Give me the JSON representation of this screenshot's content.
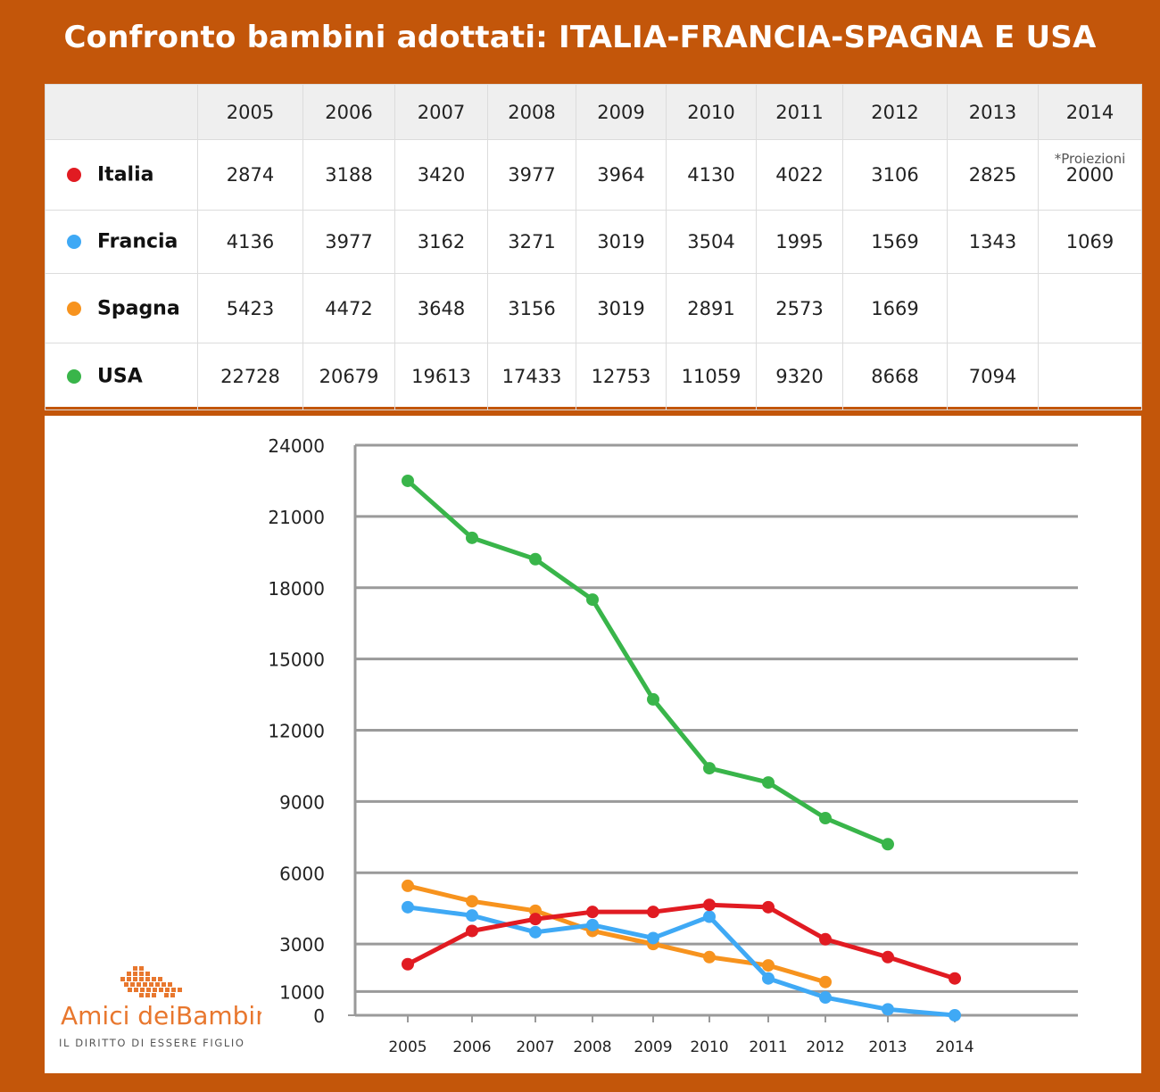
{
  "title": "Confronto bambini adottati: ITALIA-FRANCIA-SPAGNA E USA",
  "table": {
    "years": [
      "2005",
      "2006",
      "2007",
      "2008",
      "2009",
      "2010",
      "2011",
      "2012",
      "2013",
      "2014"
    ],
    "note": "*Proiezioni",
    "rows": [
      {
        "name": "Italia",
        "color": "#e11b22",
        "values": [
          "2874",
          "3188",
          "3420",
          "3977",
          "3964",
          "4130",
          "4022",
          "3106",
          "2825",
          "2000"
        ]
      },
      {
        "name": "Francia",
        "color": "#3fa9f5",
        "values": [
          "4136",
          "3977",
          "3162",
          "3271",
          "3019",
          "3504",
          "1995",
          "1569",
          "1343",
          "1069"
        ]
      },
      {
        "name": "Spagna",
        "color": "#f7931e",
        "values": [
          "5423",
          "4472",
          "3648",
          "3156",
          "3019",
          "2891",
          "2573",
          "1669",
          "",
          ""
        ]
      },
      {
        "name": "USA",
        "color": "#39b54a",
        "values": [
          "22728",
          "20679",
          "19613",
          "17433",
          "12753",
          "11059",
          "9320",
          "8668",
          "7094",
          ""
        ]
      }
    ]
  },
  "chart_data": {
    "type": "line",
    "categories": [
      "2005",
      "2006",
      "2007",
      "2008",
      "2009",
      "2010",
      "2011",
      "2012",
      "2013",
      "2014"
    ],
    "ylim": [
      0,
      24000
    ],
    "yticks": [
      "0",
      "1000",
      "3000",
      "6000",
      "9000",
      "12000",
      "15000",
      "18000",
      "21000",
      "24000"
    ],
    "grid": true,
    "series": [
      {
        "name": "USA",
        "color": "#39b54a",
        "values": [
          22500,
          20100,
          19200,
          17500,
          13300,
          10400,
          9800,
          8300,
          7200,
          null
        ]
      },
      {
        "name": "Spagna",
        "color": "#f7931e",
        "values": [
          5450,
          4800,
          4400,
          3550,
          3000,
          2450,
          2100,
          1400,
          null,
          null
        ]
      },
      {
        "name": "Francia",
        "color": "#3fa9f5",
        "values": [
          4550,
          4200,
          3500,
          3800,
          3250,
          4150,
          1550,
          750,
          250,
          0
        ]
      },
      {
        "name": "Italia",
        "color": "#e11b22",
        "values": [
          2150,
          3550,
          4050,
          4350,
          4350,
          4650,
          4550,
          3200,
          2450,
          1550
        ]
      }
    ]
  },
  "logo": {
    "name_part1": "Amici dei",
    "name_part2": "Bambini",
    "tagline": "IL DIRITTO DI ESSERE FIGLIO"
  }
}
